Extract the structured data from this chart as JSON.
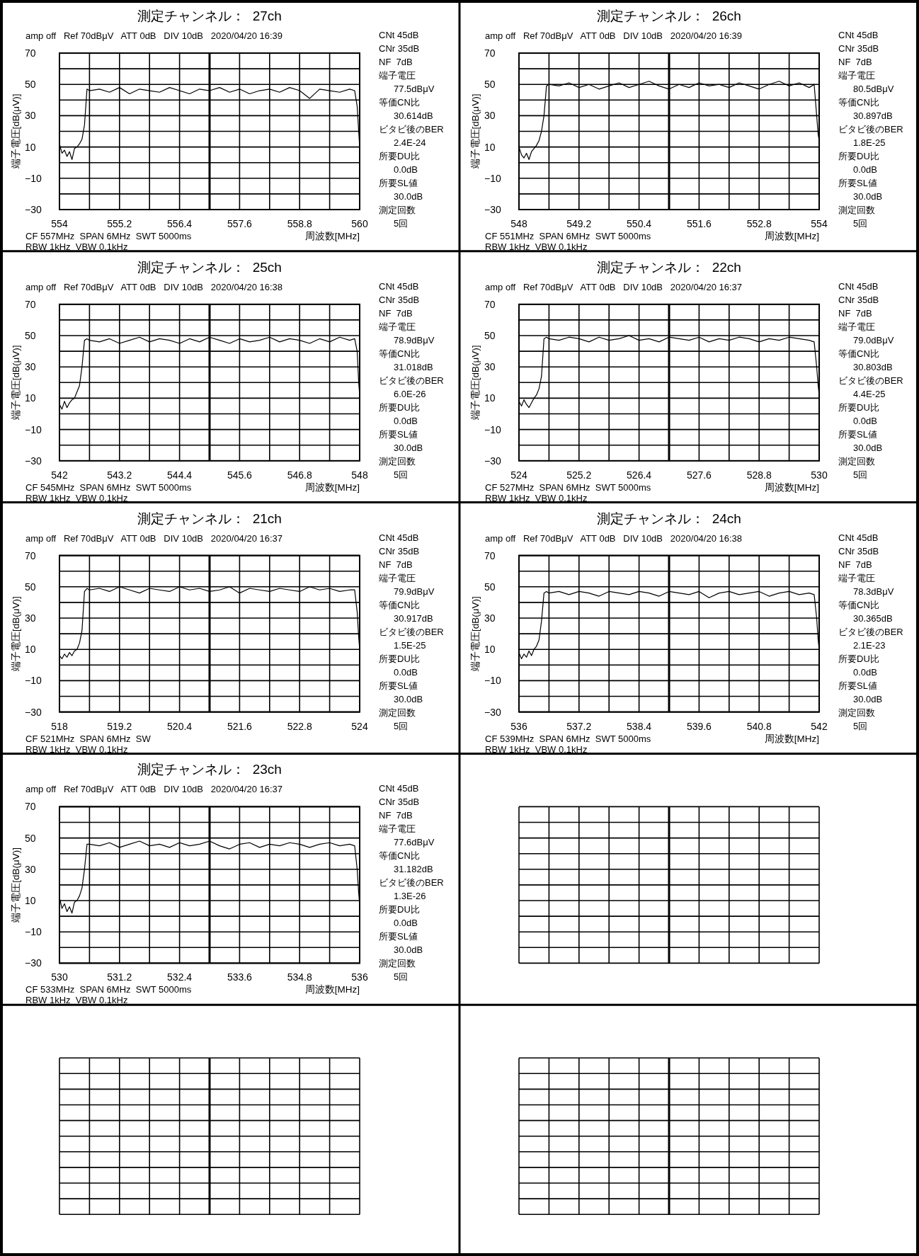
{
  "chart_data": [
    {
      "type": "line",
      "title": "測定チャンネル：  27ch",
      "subtitle": "amp off   Ref 70dBμV   ATT 0dB   DIV 10dB   2020/04/20 16:39",
      "xlabel": "周波数[MHz]",
      "ylabel": "端子電圧[dB(μV)]",
      "grid": true,
      "ref_lines": [
        {
          "axis": "x",
          "value": 557
        }
      ],
      "xlim": [
        554,
        560
      ],
      "ylim": [
        -30,
        70
      ],
      "xticks": [
        554,
        {
          "value": 554.6,
          "label": null
        },
        555.2,
        {
          "value": 555.8,
          "label": null
        },
        556.4,
        {
          "value": 557,
          "label": null
        },
        557.6,
        {
          "value": 558.2,
          "label": null
        },
        558.8,
        {
          "value": 559.4,
          "label": null
        },
        560
      ],
      "yticks": [
        -30,
        {
          "value": -20,
          "label": null
        },
        -10,
        {
          "value": 0,
          "label": null
        },
        10,
        {
          "value": 20,
          "label": null
        },
        30,
        {
          "value": 40,
          "label": null
        },
        50,
        {
          "value": 60,
          "label": null
        },
        70
      ],
      "x": [
        554,
        554.05,
        554.1,
        554.15,
        554.2,
        554.25,
        554.3,
        554.35,
        554.4,
        554.45,
        554.5,
        554.55,
        554.6,
        554.8,
        555,
        555.2,
        555.4,
        555.6,
        555.8,
        556,
        556.2,
        556.4,
        556.6,
        556.8,
        557,
        557.2,
        557.4,
        557.6,
        557.8,
        558,
        558.2,
        558.4,
        558.6,
        558.8,
        559,
        559.2,
        559.4,
        559.6,
        559.8,
        559.9,
        559.95,
        559.98,
        560
      ],
      "series": [
        {
          "color": "#000000",
          "values": [
            12,
            6,
            8,
            4,
            7,
            2,
            9,
            10,
            12,
            15,
            24,
            47,
            46,
            47,
            45,
            48,
            44,
            47,
            46,
            45,
            48,
            46,
            44,
            47,
            46,
            48,
            45,
            47,
            44,
            46,
            47,
            45,
            48,
            46,
            41,
            47,
            46,
            45,
            47,
            46,
            36,
            20,
            10
          ]
        }
      ],
      "annotations": [
        "CNt 45dB",
        "CNr 35dB",
        "NF  7dB",
        "端子電圧",
        "77.5dBμV",
        "等価CN比",
        "30.614dB",
        "ビタビ後のBER",
        "2.4E-24",
        "所要DU比",
        "0.0dB",
        "所要SL値",
        "30.0dB",
        "測定回数",
        "5回",
        "CF 557MHz  SPAN 6MHz  SWT 5000ms",
        "RBW 1kHz  VBW 0.1kHz"
      ]
    },
    {
      "type": "line",
      "title": "測定チャンネル：  26ch",
      "subtitle": "amp off   Ref 70dBμV   ATT 0dB   DIV 10dB   2020/04/20 16:39",
      "xlabel": "周波数[MHz]",
      "ylabel": "端子電圧[dB(μV)]",
      "grid": true,
      "ref_lines": [
        {
          "axis": "x",
          "value": 551
        }
      ],
      "xlim": [
        548,
        554
      ],
      "ylim": [
        -30,
        70
      ],
      "xticks": [
        548,
        {
          "value": 548.6,
          "label": null
        },
        549.2,
        {
          "value": 549.8,
          "label": null
        },
        550.4,
        {
          "value": 551,
          "label": null
        },
        551.6,
        {
          "value": 552.2,
          "label": null
        },
        552.8,
        {
          "value": 553.4,
          "label": null
        },
        554
      ],
      "yticks": [
        -30,
        {
          "value": -20,
          "label": null
        },
        -10,
        {
          "value": 0,
          "label": null
        },
        10,
        {
          "value": 20,
          "label": null
        },
        30,
        {
          "value": 40,
          "label": null
        },
        50,
        {
          "value": 60,
          "label": null
        },
        70
      ],
      "x": [
        548,
        548.05,
        548.1,
        548.15,
        548.2,
        548.25,
        548.3,
        548.35,
        548.4,
        548.45,
        548.5,
        548.55,
        548.6,
        548.8,
        549,
        549.2,
        549.4,
        549.6,
        549.8,
        550,
        550.2,
        550.4,
        550.6,
        550.8,
        551,
        551.2,
        551.4,
        551.6,
        551.8,
        552,
        552.2,
        552.4,
        552.6,
        552.8,
        553,
        553.2,
        553.4,
        553.6,
        553.8,
        553.9,
        553.95,
        553.98,
        554
      ],
      "series": [
        {
          "color": "#000000",
          "values": [
            10,
            5,
            3,
            6,
            2,
            7,
            9,
            11,
            14,
            20,
            30,
            49,
            50,
            49,
            51,
            48,
            50,
            47,
            49,
            51,
            48,
            50,
            52,
            49,
            47,
            50,
            48,
            51,
            49,
            50,
            48,
            51,
            49,
            47,
            50,
            52,
            49,
            51,
            48,
            50,
            30,
            18,
            14
          ]
        }
      ],
      "annotations": [
        "CNt 45dB",
        "CNr 35dB",
        "NF  7dB",
        "端子電圧",
        "80.5dBμV",
        "等価CN比",
        "30.897dB",
        "ビタビ後のBER",
        "1.8E-25",
        "所要DU比",
        "0.0dB",
        "所要SL値",
        "30.0dB",
        "測定回数",
        "5回",
        "CF 551MHz  SPAN 6MHz  SWT 5000ms",
        "RBW 1kHz  VBW 0.1kHz"
      ]
    },
    {
      "type": "line",
      "title": "測定チャンネル：  25ch",
      "subtitle": "amp off   Ref 70dBμV   ATT 0dB   DIV 10dB   2020/04/20 16:38",
      "xlabel": "周波数[MHz]",
      "ylabel": "端子電圧[dB(μV)]",
      "grid": true,
      "ref_lines": [
        {
          "axis": "x",
          "value": 545
        }
      ],
      "xlim": [
        542,
        548
      ],
      "ylim": [
        -30,
        70
      ],
      "xticks": [
        542,
        {
          "value": 542.6,
          "label": null
        },
        543.2,
        {
          "value": 543.8,
          "label": null
        },
        544.4,
        {
          "value": 545,
          "label": null
        },
        545.6,
        {
          "value": 546.2,
          "label": null
        },
        546.8,
        {
          "value": 547.4,
          "label": null
        },
        548
      ],
      "yticks": [
        -30,
        {
          "value": -20,
          "label": null
        },
        -10,
        {
          "value": 0,
          "label": null
        },
        10,
        {
          "value": 20,
          "label": null
        },
        30,
        {
          "value": 40,
          "label": null
        },
        50,
        {
          "value": 60,
          "label": null
        },
        70
      ],
      "x": [
        542,
        542.05,
        542.1,
        542.15,
        542.2,
        542.25,
        542.3,
        542.35,
        542.4,
        542.45,
        542.5,
        542.55,
        542.6,
        542.8,
        543,
        543.2,
        543.4,
        543.6,
        543.8,
        544,
        544.2,
        544.4,
        544.6,
        544.8,
        545,
        545.2,
        545.4,
        545.6,
        545.8,
        546,
        546.2,
        546.4,
        546.6,
        546.8,
        547,
        547.2,
        547.4,
        547.6,
        547.8,
        547.9,
        547.95,
        547.98,
        548
      ],
      "series": [
        {
          "color": "#000000",
          "values": [
            6,
            3,
            8,
            4,
            7,
            9,
            10,
            14,
            18,
            30,
            47,
            48,
            47,
            46,
            48,
            45,
            47,
            49,
            46,
            48,
            47,
            45,
            48,
            46,
            49,
            47,
            45,
            48,
            46,
            47,
            49,
            46,
            48,
            47,
            45,
            48,
            46,
            49,
            47,
            48,
            40,
            20,
            12
          ]
        }
      ],
      "annotations": [
        "CNt 45dB",
        "CNr 35dB",
        "NF  7dB",
        "端子電圧",
        "78.9dBμV",
        "等価CN比",
        "31.018dB",
        "ビタビ後のBER",
        "6.0E-26",
        "所要DU比",
        "0.0dB",
        "所要SL値",
        "30.0dB",
        "測定回数",
        "5回",
        "CF 545MHz  SPAN 6MHz  SWT 5000ms",
        "RBW 1kHz  VBW 0.1kHz"
      ]
    },
    {
      "type": "line",
      "title": "測定チャンネル：  22ch",
      "subtitle": "amp off   Ref 70dBμV   ATT 0dB   DIV 10dB   2020/04/20 16:37",
      "xlabel": "周波数[MHz]",
      "ylabel": "端子電圧[dB(μV)]",
      "grid": true,
      "ref_lines": [
        {
          "axis": "x",
          "value": 527
        }
      ],
      "xlim": [
        524,
        530
      ],
      "ylim": [
        -30,
        70
      ],
      "xticks": [
        524,
        {
          "value": 524.6,
          "label": null
        },
        525.2,
        {
          "value": 525.8,
          "label": null
        },
        526.4,
        {
          "value": 527,
          "label": null
        },
        527.6,
        {
          "value": 528.2,
          "label": null
        },
        528.8,
        {
          "value": 529.4,
          "label": null
        },
        530
      ],
      "yticks": [
        -30,
        {
          "value": -20,
          "label": null
        },
        -10,
        {
          "value": 0,
          "label": null
        },
        10,
        {
          "value": 20,
          "label": null
        },
        30,
        {
          "value": 40,
          "label": null
        },
        50,
        {
          "value": 60,
          "label": null
        },
        70
      ],
      "x": [
        524,
        524.05,
        524.1,
        524.15,
        524.2,
        524.25,
        524.3,
        524.35,
        524.4,
        524.45,
        524.5,
        524.55,
        524.6,
        524.8,
        525,
        525.2,
        525.4,
        525.6,
        525.8,
        526,
        526.2,
        526.4,
        526.6,
        526.8,
        527,
        527.2,
        527.4,
        527.6,
        527.8,
        528,
        528.2,
        528.4,
        528.6,
        528.8,
        529,
        529.2,
        529.4,
        529.6,
        529.8,
        529.9,
        529.95,
        529.98,
        530
      ],
      "series": [
        {
          "color": "#000000",
          "values": [
            8,
            5,
            9,
            6,
            4,
            7,
            10,
            12,
            16,
            24,
            48,
            49,
            48,
            47,
            49,
            48,
            46,
            49,
            47,
            48,
            50,
            47,
            48,
            46,
            49,
            48,
            47,
            49,
            46,
            48,
            47,
            49,
            48,
            46,
            48,
            47,
            49,
            48,
            47,
            46,
            30,
            18,
            12
          ]
        }
      ],
      "annotations": [
        "CNt 45dB",
        "CNr 35dB",
        "NF  7dB",
        "端子電圧",
        "79.0dBμV",
        "等価CN比",
        "30.803dB",
        "ビタビ後のBER",
        "4.4E-25",
        "所要DU比",
        "0.0dB",
        "所要SL値",
        "30.0dB",
        "測定回数",
        "5回",
        "CF 527MHz  SPAN 6MHz  SWT 5000ms",
        "RBW 1kHz  VBW 0.1kHz"
      ]
    },
    {
      "type": "line",
      "title": "測定チャンネル：  21ch",
      "subtitle": "amp off   Ref 70dBμV   ATT 0dB   DIV 10dB   2020/04/20 16:37",
      "ylabel": "端子電圧[dB(μV)]",
      "grid": true,
      "ref_lines": [
        {
          "axis": "x",
          "value": 521
        }
      ],
      "xlim": [
        518,
        524
      ],
      "ylim": [
        -30,
        70
      ],
      "xticks": [
        518,
        {
          "value": 518.6,
          "label": null
        },
        519.2,
        {
          "value": 519.8,
          "label": null
        },
        520.4,
        {
          "value": 521,
          "label": null
        },
        521.6,
        {
          "value": 522.2,
          "label": null
        },
        522.8,
        {
          "value": 523.4,
          "label": null
        },
        524
      ],
      "yticks": [
        -30,
        {
          "value": -20,
          "label": null
        },
        -10,
        {
          "value": 0,
          "label": null
        },
        10,
        {
          "value": 20,
          "label": null
        },
        30,
        {
          "value": 40,
          "label": null
        },
        50,
        {
          "value": 60,
          "label": null
        },
        70
      ],
      "x": [
        518,
        518.05,
        518.1,
        518.15,
        518.2,
        518.25,
        518.3,
        518.35,
        518.4,
        518.45,
        518.5,
        518.55,
        518.6,
        518.8,
        519,
        519.2,
        519.4,
        519.6,
        519.8,
        520,
        520.2,
        520.4,
        520.6,
        520.8,
        521,
        521.2,
        521.4,
        521.6,
        521.8,
        522,
        522.2,
        522.4,
        522.6,
        522.8,
        523,
        523.2,
        523.4,
        523.6,
        523.8,
        523.9,
        523.95,
        523.98,
        524
      ],
      "series": [
        {
          "color": "#000000",
          "values": [
            6,
            4,
            7,
            5,
            8,
            6,
            9,
            10,
            14,
            22,
            47,
            49,
            48,
            49,
            47,
            50,
            48,
            46,
            49,
            48,
            47,
            50,
            48,
            49,
            47,
            48,
            50,
            46,
            49,
            48,
            47,
            49,
            48,
            47,
            50,
            48,
            49,
            47,
            48,
            48,
            34,
            18,
            10
          ]
        }
      ],
      "annotations": [
        "CNt 45dB",
        "CNr 35dB",
        "NF  7dB",
        "端子電圧",
        "79.9dBμV",
        "等価CN比",
        "30.917dB",
        "ビタビ後のBER",
        "1.5E-25",
        "所要DU比",
        "0.0dB",
        "所要SL値",
        "30.0dB",
        "測定回数",
        "5回",
        "CF 521MHz  SPAN 6MHz  SW",
        "RBW 1kHz  VBW 0.1kHz"
      ]
    },
    {
      "type": "line",
      "title": "測定チャンネル：  24ch",
      "subtitle": "amp off   Ref 70dBμV   ATT 0dB   DIV 10dB   2020/04/20 16:38",
      "xlabel": "周波数[MHz]",
      "ylabel": "端子電圧[dB(μV)]",
      "grid": true,
      "ref_lines": [
        {
          "axis": "x",
          "value": 539
        }
      ],
      "xlim": [
        536,
        542
      ],
      "ylim": [
        -30,
        70
      ],
      "xticks": [
        536,
        {
          "value": 536.6,
          "label": null
        },
        537.2,
        {
          "value": 537.8,
          "label": null
        },
        538.4,
        {
          "value": 539,
          "label": null
        },
        539.6,
        {
          "value": 540.2,
          "label": null
        },
        540.8,
        {
          "value": 541.4,
          "label": null
        },
        542
      ],
      "yticks": [
        -30,
        {
          "value": -20,
          "label": null
        },
        -10,
        {
          "value": 0,
          "label": null
        },
        10,
        {
          "value": 20,
          "label": null
        },
        30,
        {
          "value": 40,
          "label": null
        },
        50,
        {
          "value": 60,
          "label": null
        },
        70
      ],
      "x": [
        536,
        536.05,
        536.1,
        536.15,
        536.2,
        536.25,
        536.3,
        536.35,
        536.4,
        536.45,
        536.5,
        536.55,
        536.6,
        536.8,
        537,
        537.2,
        537.4,
        537.6,
        537.8,
        538,
        538.2,
        538.4,
        538.6,
        538.8,
        539,
        539.2,
        539.4,
        539.6,
        539.8,
        540,
        540.2,
        540.4,
        540.6,
        540.8,
        541,
        541.2,
        541.4,
        541.6,
        541.8,
        541.9,
        541.95,
        541.98,
        542
      ],
      "series": [
        {
          "color": "#000000",
          "values": [
            8,
            4,
            7,
            5,
            9,
            6,
            10,
            12,
            16,
            28,
            46,
            47,
            46,
            47,
            45,
            47,
            46,
            44,
            47,
            46,
            45,
            47,
            46,
            44,
            47,
            46,
            45,
            47,
            43,
            46,
            47,
            45,
            46,
            47,
            44,
            46,
            47,
            45,
            46,
            45,
            30,
            16,
            10
          ]
        }
      ],
      "annotations": [
        "CNt 45dB",
        "CNr 35dB",
        "NF  7dB",
        "端子電圧",
        "78.3dBμV",
        "等価CN比",
        "30.365dB",
        "ビタビ後のBER",
        "2.1E-23",
        "所要DU比",
        "0.0dB",
        "所要SL値",
        "30.0dB",
        "測定回数",
        "5回",
        "CF 539MHz  SPAN 6MHz  SWT 5000ms",
        "RBW 1kHz  VBW 0.1kHz"
      ]
    },
    {
      "type": "line",
      "title": "測定チャンネル：  23ch",
      "subtitle": "amp off   Ref 70dBμV   ATT 0dB   DIV 10dB   2020/04/20 16:37",
      "xlabel": "周波数[MHz]",
      "ylabel": "端子電圧[dB(μV)]",
      "grid": true,
      "ref_lines": [
        {
          "axis": "x",
          "value": 533
        }
      ],
      "xlim": [
        530,
        536
      ],
      "ylim": [
        -30,
        70
      ],
      "xticks": [
        530,
        {
          "value": 530.6,
          "label": null
        },
        531.2,
        {
          "value": 531.8,
          "label": null
        },
        532.4,
        {
          "value": 533,
          "label": null
        },
        533.6,
        {
          "value": 534.2,
          "label": null
        },
        534.8,
        {
          "value": 535.4,
          "label": null
        },
        536
      ],
      "yticks": [
        -30,
        {
          "value": -20,
          "label": null
        },
        -10,
        {
          "value": 0,
          "label": null
        },
        10,
        {
          "value": 20,
          "label": null
        },
        30,
        {
          "value": 40,
          "label": null
        },
        50,
        {
          "value": 60,
          "label": null
        },
        70
      ],
      "x": [
        530,
        530.05,
        530.1,
        530.15,
        530.2,
        530.25,
        530.3,
        530.35,
        530.4,
        530.45,
        530.5,
        530.55,
        530.6,
        530.8,
        531,
        531.2,
        531.4,
        531.6,
        531.8,
        532,
        532.2,
        532.4,
        532.6,
        532.8,
        533,
        533.2,
        533.4,
        533.6,
        533.8,
        534,
        534.2,
        534.4,
        534.6,
        534.8,
        535,
        535.2,
        535.4,
        535.6,
        535.8,
        535.9,
        535.95,
        535.98,
        536
      ],
      "series": [
        {
          "color": "#000000",
          "values": [
            12,
            5,
            8,
            3,
            6,
            2,
            9,
            10,
            13,
            18,
            30,
            46,
            46,
            45,
            47,
            44,
            46,
            48,
            45,
            46,
            44,
            47,
            45,
            46,
            48,
            45,
            43,
            46,
            47,
            44,
            46,
            45,
            47,
            46,
            44,
            46,
            47,
            45,
            46,
            45,
            30,
            15,
            7
          ]
        }
      ],
      "annotations": [
        "CNt 45dB",
        "CNr 35dB",
        "NF  7dB",
        "端子電圧",
        "77.6dBμV",
        "等価CN比",
        "31.182dB",
        "ビタビ後のBER",
        "1.3E-26",
        "所要DU比",
        "0.0dB",
        "所要SL値",
        "30.0dB",
        "測定回数",
        "5回",
        "CF 533MHz  SPAN 6MHz  SWT 5000ms",
        "RBW 1kHz  VBW 0.1kHz"
      ]
    }
  ]
}
